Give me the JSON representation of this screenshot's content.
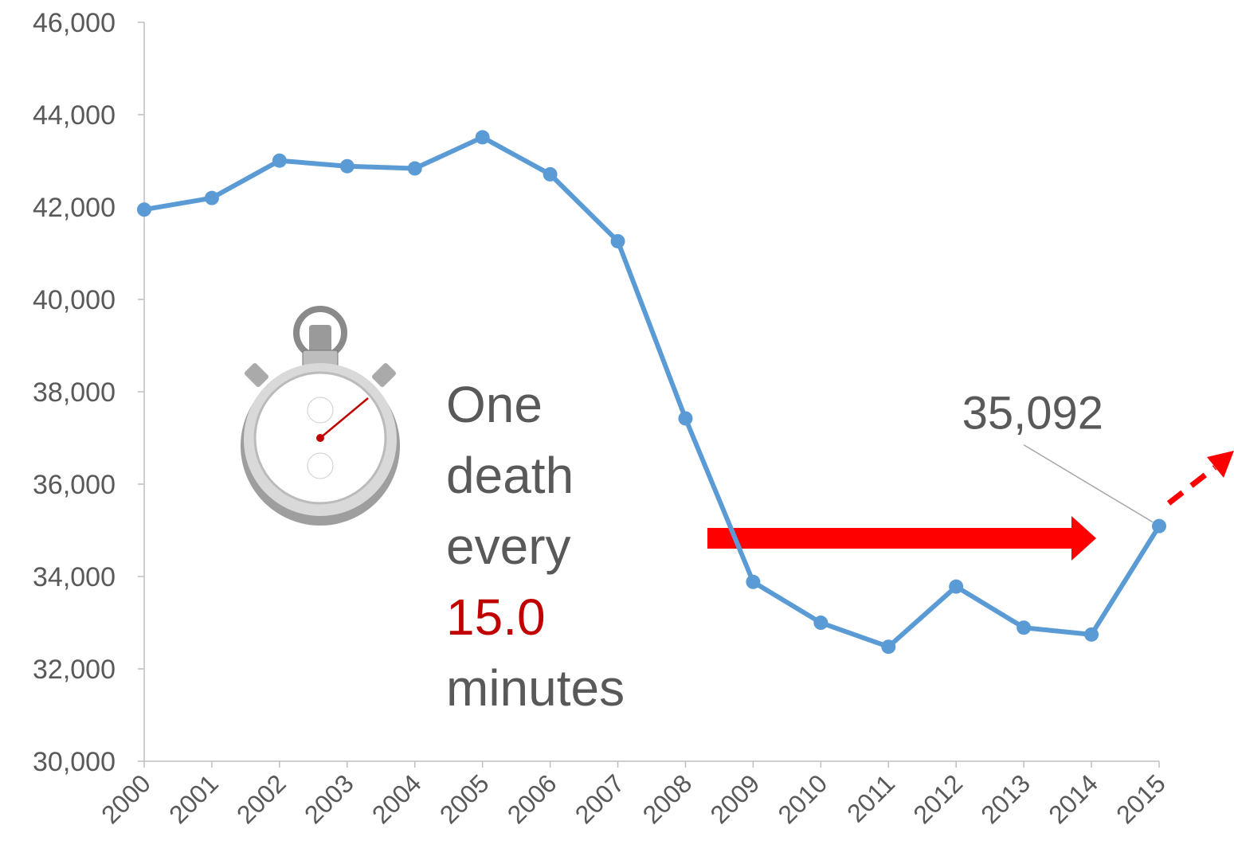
{
  "chart_data": {
    "type": "line",
    "categories": [
      "2000",
      "2001",
      "2002",
      "2003",
      "2004",
      "2005",
      "2006",
      "2007",
      "2008",
      "2009",
      "2010",
      "2011",
      "2012",
      "2013",
      "2014",
      "2015"
    ],
    "series": [
      {
        "color": "#5b9bd5",
        "values": [
          41945,
          42196,
          43005,
          42884,
          42836,
          43510,
          42708,
          41259,
          37423,
          33883,
          32999,
          32479,
          33782,
          32893,
          32744,
          35092
        ],
        "value_labels": [
          null,
          null,
          null,
          null,
          null,
          null,
          null,
          null,
          null,
          null,
          null,
          null,
          null,
          null,
          null,
          "35,092"
        ]
      }
    ],
    "ylim": [
      30000,
      46000
    ],
    "yticks": [
      {
        "value": 30000,
        "label": "30,000"
      },
      {
        "value": 32000,
        "label": "32,000"
      },
      {
        "value": 34000,
        "label": "34,000"
      },
      {
        "value": 36000,
        "label": "36,000"
      },
      {
        "value": 38000,
        "label": "38,000"
      },
      {
        "value": 40000,
        "label": "40,000"
      },
      {
        "value": 42000,
        "label": "42,000"
      },
      {
        "value": 44000,
        "label": "44,000"
      },
      {
        "value": 46000,
        "label": "46,000"
      }
    ],
    "grid": false,
    "annotation": [
      "One",
      "death",
      "every",
      "15.0",
      "minutes"
    ],
    "annotation_highlight_color": "#c00000"
  }
}
